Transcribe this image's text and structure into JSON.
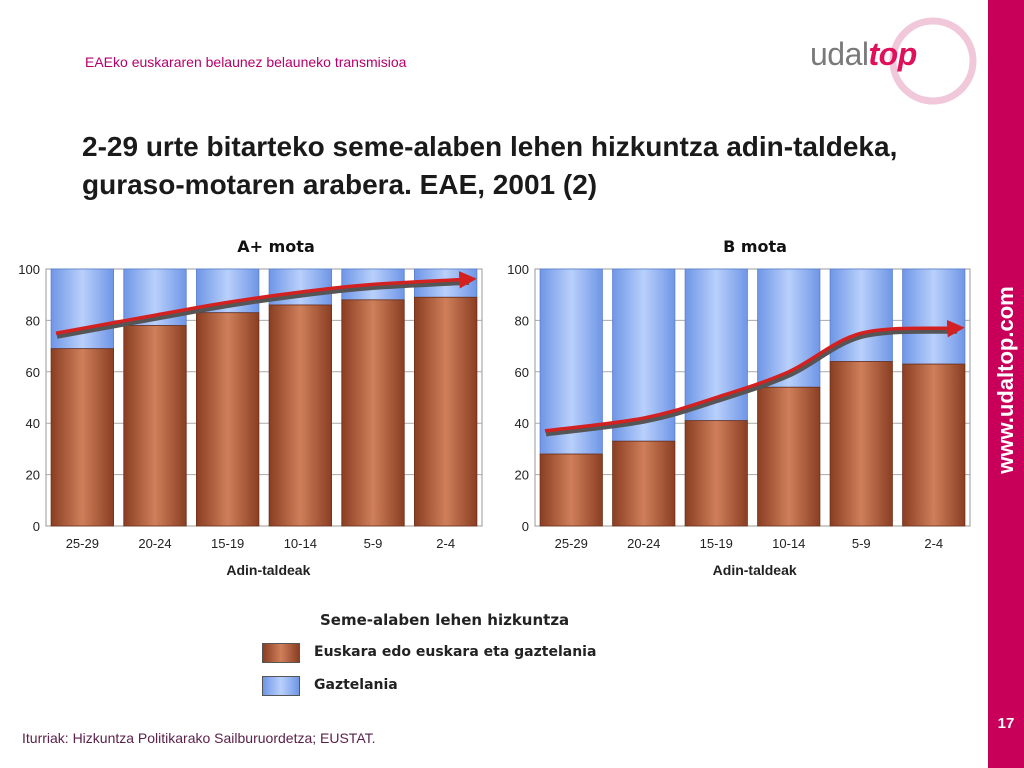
{
  "header": {
    "subtitle": "EAEko euskararen belaunez belauneko transmisioa"
  },
  "logo": {
    "text_plain": "udal",
    "text_accent": "top"
  },
  "page": {
    "title": "2-29 urte bitarteko seme-alaben lehen hizkuntza adin-taldeka, guraso-motaren arabera. EAE, 2001 (2)",
    "url": "www.udaltop.com",
    "page_number": "17",
    "source": "Iturriak: Hizkuntza Politikarako Sailburuordetza; EUSTAT."
  },
  "legend": {
    "title": "Seme-alaben lehen hizkuntza",
    "items": [
      {
        "label": "Euskara edo euskara eta gaztelania",
        "color": "#b5613f"
      },
      {
        "label": "Gaztelania",
        "color": "#8fb2f2"
      }
    ]
  },
  "colors": {
    "accent": "#c8005a",
    "bar_basque": "#b5613f",
    "bar_spanish": "#8fb2f2",
    "trend": "#d32020"
  },
  "chart_data": [
    {
      "type": "bar",
      "stacked": true,
      "title": "A+ mota",
      "xlabel": "Adin-taldeak",
      "ylabel": "",
      "ylim": [
        0,
        100
      ],
      "yticks": [
        0,
        20,
        40,
        60,
        80,
        100
      ],
      "grid": true,
      "categories": [
        "25-29",
        "20-24",
        "15-19",
        "10-14",
        "5-9",
        "2-4"
      ],
      "series": [
        {
          "name": "Euskara edo euskara eta gaztelania",
          "values": [
            69,
            78,
            83,
            86,
            88,
            89
          ]
        },
        {
          "name": "Gaztelania",
          "values": [
            31,
            22,
            17,
            14,
            12,
            11
          ]
        }
      ],
      "trend": [
        75,
        82,
        87,
        91,
        94,
        96
      ]
    },
    {
      "type": "bar",
      "stacked": true,
      "title": "B mota",
      "xlabel": "Adin-taldeak",
      "ylabel": "",
      "ylim": [
        0,
        100
      ],
      "yticks": [
        0,
        20,
        40,
        60,
        80,
        100
      ],
      "grid": true,
      "categories": [
        "25-29",
        "20-24",
        "15-19",
        "10-14",
        "5-9",
        "2-4"
      ],
      "series": [
        {
          "name": "Euskara edo euskara eta gaztelania",
          "values": [
            28,
            33,
            41,
            54,
            64,
            63
          ]
        },
        {
          "name": "Gaztelania",
          "values": [
            72,
            67,
            59,
            46,
            36,
            37
          ]
        }
      ],
      "trend": [
        37,
        42,
        50,
        60,
        75,
        77
      ]
    }
  ]
}
